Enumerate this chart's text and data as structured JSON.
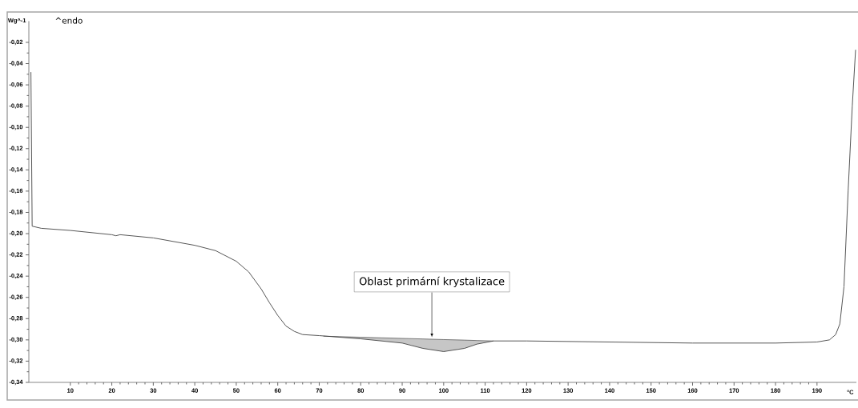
{
  "chart_data": {
    "type": "line",
    "ylabel": "Wg^-1",
    "xlabel": "°C",
    "annotations": [
      "^endo",
      "Oblast primární krystalizace"
    ],
    "xlim": [
      0,
      199.5
    ],
    "ylim": [
      -0.34,
      0
    ],
    "xticks": [
      10,
      20,
      30,
      40,
      50,
      60,
      70,
      80,
      90,
      100,
      110,
      120,
      130,
      140,
      150,
      160,
      170,
      180,
      190
    ],
    "yticks": [
      {
        "value": -0.34,
        "label": "-0,34"
      },
      {
        "value": -0.32,
        "label": "-0,32"
      },
      {
        "value": -0.3,
        "label": "-0,30"
      },
      {
        "value": -0.28,
        "label": "-0,28"
      },
      {
        "value": -0.26,
        "label": "-0,26"
      },
      {
        "value": -0.24,
        "label": "-0,24"
      },
      {
        "value": -0.22,
        "label": "-0,22"
      },
      {
        "value": -0.2,
        "label": "-0,20"
      },
      {
        "value": -0.18,
        "label": "-0,18"
      },
      {
        "value": -0.16,
        "label": "-0,16"
      },
      {
        "value": -0.14,
        "label": "-0,14"
      },
      {
        "value": -0.12,
        "label": "-0,12"
      },
      {
        "value": -0.1,
        "label": "-0,10"
      },
      {
        "value": -0.08,
        "label": "-0,08"
      },
      {
        "value": -0.06,
        "label": "-0,06"
      },
      {
        "value": -0.04,
        "label": "-0,04"
      },
      {
        "value": -0.02,
        "label": "-0,02"
      }
    ],
    "grid": false,
    "series": [
      {
        "color": "#555555",
        "x": [
          0.5,
          0.8,
          3,
          10,
          20,
          21,
          22,
          30,
          40,
          45,
          50,
          53,
          56,
          58,
          60,
          62,
          64,
          66,
          70,
          80,
          90,
          95,
          100,
          105,
          108,
          112,
          120,
          140,
          160,
          180,
          190,
          193,
          194.5,
          195.5,
          196.5,
          197.5,
          198.5,
          199.3
        ],
        "values": [
          -0.048,
          -0.193,
          -0.195,
          -0.197,
          -0.201,
          -0.202,
          -0.201,
          -0.204,
          -0.211,
          -0.216,
          -0.226,
          -0.236,
          -0.252,
          -0.265,
          -0.277,
          -0.287,
          -0.292,
          -0.295,
          -0.296,
          -0.299,
          -0.303,
          -0.308,
          -0.311,
          -0.308,
          -0.304,
          -0.301,
          -0.301,
          -0.302,
          -0.303,
          -0.303,
          -0.302,
          -0.3,
          -0.295,
          -0.285,
          -0.25,
          -0.16,
          -0.08,
          -0.027
        ]
      },
      {
        "type": "line",
        "color": "#333333",
        "x": [
          71,
          80,
          90,
          95,
          100,
          105,
          108,
          112
        ],
        "values": [
          -0.2965,
          -0.2975,
          -0.2986,
          -0.2991,
          -0.2997,
          -0.3002,
          -0.3006,
          -0.301
        ],
        "lower": [
          -0.2965,
          -0.299,
          -0.303,
          -0.308,
          -0.311,
          -0.308,
          -0.304,
          -0.301
        ],
        "upper": [
          -0.2965,
          -0.2975,
          -0.2986,
          -0.2991,
          -0.2997,
          -0.3002,
          -0.3006,
          -0.301
        ]
      }
    ]
  }
}
